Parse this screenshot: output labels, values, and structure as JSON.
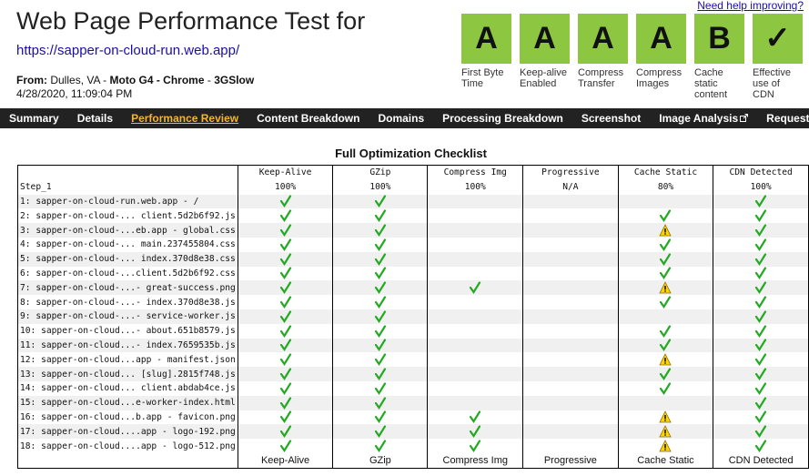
{
  "header": {
    "title": "Web Page Performance Test for",
    "url": "https://sapper-on-cloud-run.web.app/",
    "from": {
      "label": "From:",
      "location": "Dulles, VA",
      "separator": "-",
      "browser": "Moto G4 - Chrome",
      "connection": "3GSlow"
    },
    "date": "4/28/2020, 11:09:04 PM",
    "help": "Need help improving?"
  },
  "grades": [
    {
      "grade": "A",
      "label": "First Byte Time"
    },
    {
      "grade": "A",
      "label": "Keep-alive Enabled"
    },
    {
      "grade": "A",
      "label": "Compress Transfer"
    },
    {
      "grade": "A",
      "label": "Compress Images"
    },
    {
      "grade": "B",
      "label": "Cache static content"
    },
    {
      "grade": "✓",
      "label": "Effective use of CDN"
    }
  ],
  "nav": {
    "items": [
      "Summary",
      "Details",
      "Performance Review",
      "Content Breakdown",
      "Domains",
      "Processing Breakdown",
      "Screenshot",
      "Image Analysis",
      "Request Map"
    ],
    "active": 2,
    "external": [
      7,
      8
    ]
  },
  "table": {
    "title": "Full Optimization Checklist",
    "step": "Step_1",
    "columns": [
      "Keep-Alive",
      "GZip",
      "Compress Img",
      "Progressive",
      "Cache Static",
      "CDN Detected"
    ],
    "scores": [
      "100%",
      "100%",
      "100%",
      "N/A",
      "80%",
      "100%"
    ],
    "rows": [
      {
        "label": "1: sapper-on-cloud-run.web.app - /",
        "cells": [
          "pass",
          "pass",
          "",
          "",
          "",
          "pass"
        ]
      },
      {
        "label": "2: sapper-on-cloud-... client.5d2b6f92.js",
        "cells": [
          "pass",
          "pass",
          "",
          "",
          "pass",
          "pass"
        ]
      },
      {
        "label": "3: sapper-on-cloud-...eb.app - global.css",
        "cells": [
          "pass",
          "pass",
          "",
          "",
          "warn",
          "pass"
        ]
      },
      {
        "label": "4: sapper-on-cloud-... main.237455804.css",
        "cells": [
          "pass",
          "pass",
          "",
          "",
          "pass",
          "pass"
        ]
      },
      {
        "label": "5: sapper-on-cloud-... index.370d8e38.css",
        "cells": [
          "pass",
          "pass",
          "",
          "",
          "pass",
          "pass"
        ]
      },
      {
        "label": "6: sapper-on-cloud-...client.5d2b6f92.css",
        "cells": [
          "pass",
          "pass",
          "",
          "",
          "pass",
          "pass"
        ]
      },
      {
        "label": "7: sapper-on-cloud-...- great-success.png",
        "cells": [
          "pass",
          "pass",
          "pass",
          "",
          "warn",
          "pass"
        ]
      },
      {
        "label": "8: sapper-on-cloud-...- index.370d8e38.js",
        "cells": [
          "pass",
          "pass",
          "",
          "",
          "pass",
          "pass"
        ]
      },
      {
        "label": "9: sapper-on-cloud-...- service-worker.js",
        "cells": [
          "pass",
          "pass",
          "",
          "",
          "",
          "pass"
        ]
      },
      {
        "label": "10: sapper-on-cloud...- about.651b8579.js",
        "cells": [
          "pass",
          "pass",
          "",
          "",
          "pass",
          "pass"
        ]
      },
      {
        "label": "11: sapper-on-cloud...- index.7659535b.js",
        "cells": [
          "pass",
          "pass",
          "",
          "",
          "pass",
          "pass"
        ]
      },
      {
        "label": "12: sapper-on-cloud...app - manifest.json",
        "cells": [
          "pass",
          "pass",
          "",
          "",
          "warn",
          "pass"
        ]
      },
      {
        "label": "13: sapper-on-cloud... [slug].2815f748.js",
        "cells": [
          "pass",
          "pass",
          "",
          "",
          "pass",
          "pass"
        ]
      },
      {
        "label": "14: sapper-on-cloud... client.abdab4ce.js",
        "cells": [
          "pass",
          "pass",
          "",
          "",
          "pass",
          "pass"
        ]
      },
      {
        "label": "15: sapper-on-cloud...e-worker-index.html",
        "cells": [
          "pass",
          "pass",
          "",
          "",
          "",
          "pass"
        ]
      },
      {
        "label": "16: sapper-on-cloud...b.app - favicon.png",
        "cells": [
          "pass",
          "pass",
          "pass",
          "",
          "warn",
          "pass"
        ]
      },
      {
        "label": "17: sapper-on-cloud....app - logo-192.png",
        "cells": [
          "pass",
          "pass",
          "pass",
          "",
          "warn",
          "pass"
        ]
      },
      {
        "label": "18: sapper-on-cloud....app - logo-512.png",
        "cells": [
          "pass",
          "pass",
          "pass",
          "",
          "warn",
          "pass"
        ]
      }
    ]
  }
}
